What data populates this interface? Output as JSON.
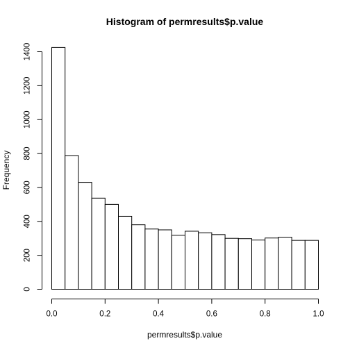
{
  "chart_data": {
    "type": "bar",
    "title": "Histogram of permresults$p.value",
    "xlabel": "permresults$p.value",
    "ylabel": "Frequency",
    "bin_edges": [
      0.0,
      0.05,
      0.1,
      0.15,
      0.2,
      0.25,
      0.3,
      0.35,
      0.4,
      0.45,
      0.5,
      0.55,
      0.6,
      0.65,
      0.7,
      0.75,
      0.8,
      0.85,
      0.9,
      0.95,
      1.0
    ],
    "values": [
      1425,
      788,
      630,
      537,
      500,
      430,
      380,
      355,
      350,
      318,
      342,
      333,
      322,
      300,
      298,
      290,
      302,
      307,
      288,
      288
    ],
    "xlim": [
      0.0,
      1.0
    ],
    "ylim": [
      0,
      1400
    ],
    "x_ticks": [
      0.0,
      0.2,
      0.4,
      0.6,
      0.8,
      1.0
    ],
    "x_tick_labels": [
      "0.0",
      "0.2",
      "0.4",
      "0.6",
      "0.8",
      "1.0"
    ],
    "y_ticks": [
      0,
      200,
      400,
      600,
      800,
      1000,
      1200,
      1400
    ],
    "y_tick_labels": [
      "0",
      "200",
      "400",
      "600",
      "800",
      "1000",
      "1200",
      "1400"
    ],
    "grid": false,
    "legend": "none",
    "colors": {
      "bar_fill": "#ffffff",
      "bar_stroke": "#000000",
      "text": "#000000"
    }
  }
}
